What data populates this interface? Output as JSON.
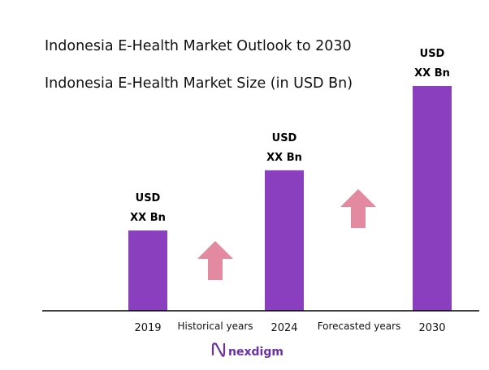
{
  "chart_data": {
    "type": "bar",
    "title": "Indonesia E-Health Market Outlook to 2030",
    "subtitle": "Indonesia E-Health Market Size (in USD Bn)",
    "categories": [
      "2019",
      "2024",
      "2030"
    ],
    "values": [
      1.0,
      1.75,
      2.8
    ],
    "value_labels": [
      [
        "USD",
        "XX Bn"
      ],
      [
        "USD",
        "XX Bn"
      ],
      [
        "USD",
        "XX Bn"
      ]
    ],
    "period_labels": [
      "Historical years",
      "Forecasted years"
    ],
    "ylim": [
      0,
      2.8
    ],
    "grid": false,
    "colors": {
      "bar": "#8a3fbf",
      "arrow": "#e38aa0",
      "axis": "#000000",
      "text": "#111111"
    }
  },
  "brand": {
    "name": "nexdigm",
    "logo_color": "#6b2fa8"
  }
}
